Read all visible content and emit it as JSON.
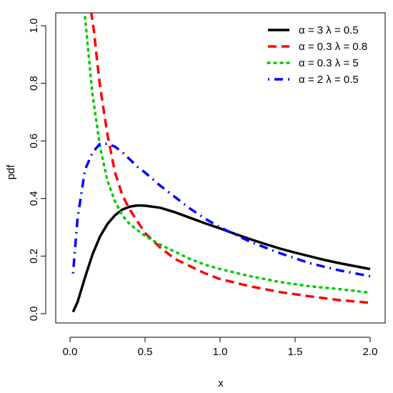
{
  "chart_data": {
    "type": "line",
    "title": "",
    "xlabel": "x",
    "ylabel": "pdf",
    "xlim": [
      0.0,
      2.0
    ],
    "ylim": [
      0.0,
      1.0
    ],
    "x_ticks": [
      "0.0",
      "0.5",
      "1.0",
      "1.5",
      "2.0"
    ],
    "y_ticks": [
      "0.0",
      "0.2",
      "0.4",
      "0.6",
      "0.8",
      "1.0"
    ],
    "grid": false,
    "legend_position": "top-right",
    "series": [
      {
        "name": "α = 3  λ = 0.5",
        "color": "#000000",
        "dash": "solid",
        "x": [
          0.02,
          0.05,
          0.1,
          0.15,
          0.2,
          0.25,
          0.3,
          0.35,
          0.4,
          0.45,
          0.5,
          0.6,
          0.7,
          0.8,
          0.9,
          1.0,
          1.1,
          1.2,
          1.3,
          1.4,
          1.5,
          1.6,
          1.7,
          1.8,
          1.9,
          2.0
        ],
        "y": [
          0.006,
          0.04,
          0.126,
          0.206,
          0.268,
          0.312,
          0.342,
          0.362,
          0.372,
          0.376,
          0.375,
          0.368,
          0.352,
          0.333,
          0.314,
          0.296,
          0.277,
          0.259,
          0.242,
          0.226,
          0.212,
          0.199,
          0.186,
          0.175,
          0.165,
          0.155
        ]
      },
      {
        "name": "α = 0.3  λ = 0.8",
        "color": "#ff0000",
        "dash": "dashed",
        "x": [
          0.14,
          0.16,
          0.18,
          0.2,
          0.25,
          0.3,
          0.35,
          0.4,
          0.45,
          0.5,
          0.6,
          0.7,
          0.8,
          0.9,
          1.0,
          1.2,
          1.4,
          1.6,
          1.8,
          2.0
        ],
        "y": [
          1.05,
          0.98,
          0.88,
          0.79,
          0.62,
          0.49,
          0.41,
          0.36,
          0.32,
          0.28,
          0.23,
          0.19,
          0.165,
          0.14,
          0.12,
          0.095,
          0.075,
          0.06,
          0.047,
          0.038
        ]
      },
      {
        "name": "α = 0.3  λ = 5",
        "color": "#00cc00",
        "dash": "dotted",
        "x": [
          0.1,
          0.12,
          0.15,
          0.2,
          0.25,
          0.3,
          0.35,
          0.4,
          0.5,
          0.6,
          0.7,
          0.8,
          0.9,
          1.0,
          1.2,
          1.4,
          1.6,
          1.8,
          2.0
        ],
        "y": [
          1.03,
          0.92,
          0.76,
          0.58,
          0.46,
          0.39,
          0.34,
          0.31,
          0.27,
          0.24,
          0.215,
          0.19,
          0.17,
          0.155,
          0.13,
          0.11,
          0.095,
          0.085,
          0.073
        ]
      },
      {
        "name": "α = 2  λ = 0.5",
        "color": "#0000ff",
        "dash": "dotdash",
        "x": [
          0.02,
          0.05,
          0.1,
          0.15,
          0.2,
          0.25,
          0.3,
          0.35,
          0.4,
          0.45,
          0.5,
          0.6,
          0.7,
          0.8,
          0.9,
          1.0,
          1.2,
          1.4,
          1.6,
          1.8,
          2.0
        ],
        "y": [
          0.14,
          0.33,
          0.5,
          0.56,
          0.59,
          0.59,
          0.58,
          0.56,
          0.535,
          0.51,
          0.49,
          0.445,
          0.405,
          0.365,
          0.33,
          0.3,
          0.25,
          0.21,
          0.175,
          0.15,
          0.13
        ]
      }
    ]
  }
}
